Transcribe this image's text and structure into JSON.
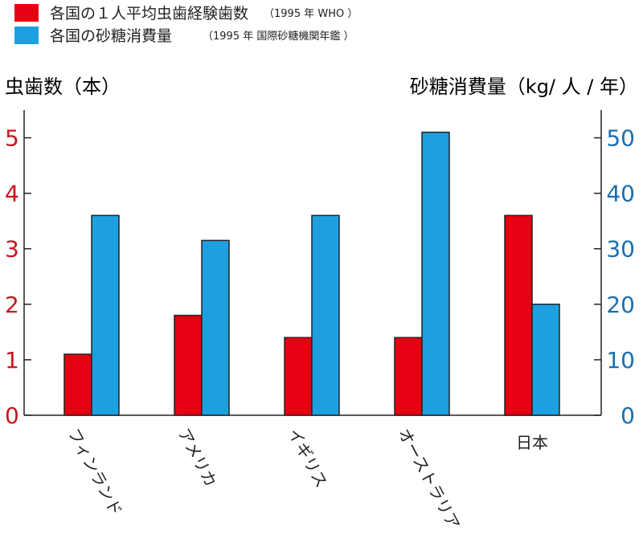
{
  "chart_data": {
    "type": "bar",
    "legend": [
      {
        "label": "各国の１人平均虫歯経験歯数",
        "note": "（1995 年  WHO ）",
        "color": "#e60012"
      },
      {
        "label": "各国の砂糖消費量",
        "note": "（1995 年  国際砂糖機関年鑑 ）",
        "color": "#1ea0e0"
      }
    ],
    "legend_position": "top-left",
    "y_left": {
      "label": "虫歯数（本）",
      "color": "#c8161d",
      "range": [
        0,
        5.5
      ],
      "ticks": [
        0,
        1,
        2,
        3,
        4,
        5
      ]
    },
    "y_right": {
      "label": "砂糖消費量（kg/ 人 / 年）",
      "color": "#1a6fb0",
      "range": [
        0,
        55
      ],
      "ticks": [
        0,
        10,
        20,
        30,
        40,
        50
      ]
    },
    "categories": [
      "フィンランド",
      "アメリカ",
      "イギリス",
      "オーストラリア",
      "日本"
    ],
    "category_rotated": [
      true,
      true,
      true,
      true,
      false
    ],
    "series": [
      {
        "axis": "left",
        "color": "#e60012",
        "values": [
          1.1,
          1.8,
          1.4,
          1.4,
          3.6
        ]
      },
      {
        "axis": "right",
        "color": "#1ea0e0",
        "values": [
          36,
          31.5,
          36,
          51,
          20
        ]
      }
    ],
    "grid": false
  }
}
